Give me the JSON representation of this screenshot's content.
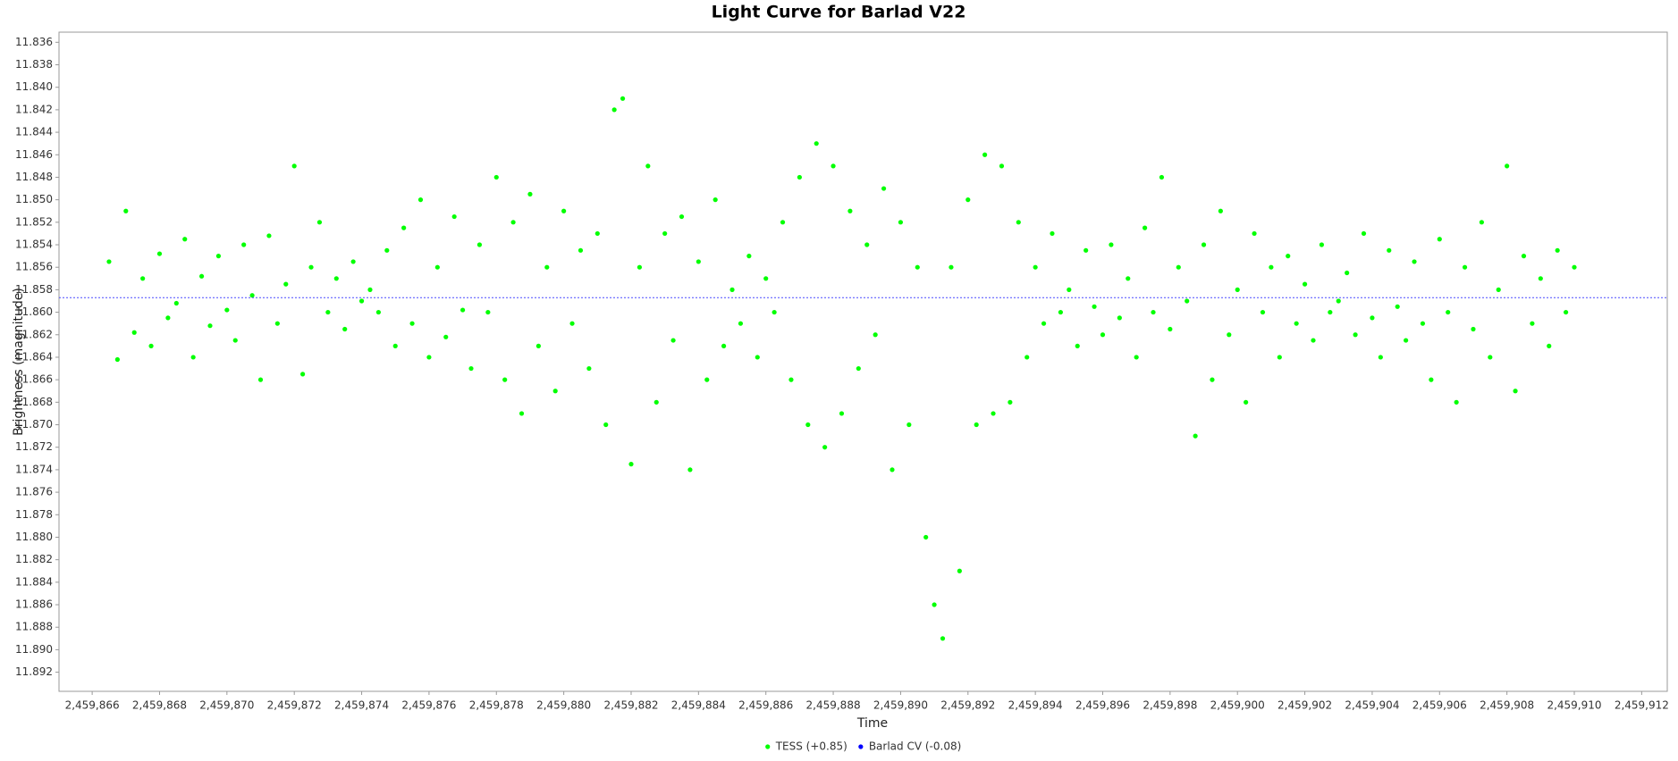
{
  "chart_data": {
    "type": "scatter",
    "title": "Light Curve for Barlad V22",
    "x_label": "Time",
    "y_label": "Brightness (magnitude)",
    "y_inverted": true,
    "grid": false,
    "xlim": [
      2459865.015,
      2459912.76
    ],
    "ylim": [
      11.8351,
      11.8937
    ],
    "xticks": [
      {
        "value": 2459866,
        "label": "2,459,866"
      },
      {
        "value": 2459868,
        "label": "2,459,868"
      },
      {
        "value": 2459870,
        "label": "2,459,870"
      },
      {
        "value": 2459872,
        "label": "2,459,872"
      },
      {
        "value": 2459874,
        "label": "2,459,874"
      },
      {
        "value": 2459876,
        "label": "2,459,876"
      },
      {
        "value": 2459878,
        "label": "2,459,878"
      },
      {
        "value": 2459880,
        "label": "2,459,880"
      },
      {
        "value": 2459882,
        "label": "2,459,882"
      },
      {
        "value": 2459884,
        "label": "2,459,884"
      },
      {
        "value": 2459886,
        "label": "2,459,886"
      },
      {
        "value": 2459888,
        "label": "2,459,888"
      },
      {
        "value": 2459890,
        "label": "2,459,890"
      },
      {
        "value": 2459892,
        "label": "2,459,892"
      },
      {
        "value": 2459894,
        "label": "2,459,894"
      },
      {
        "value": 2459896,
        "label": "2,459,896"
      },
      {
        "value": 2459898,
        "label": "2,459,898"
      },
      {
        "value": 2459900,
        "label": "2,459,900"
      },
      {
        "value": 2459902,
        "label": "2,459,902"
      },
      {
        "value": 2459904,
        "label": "2,459,904"
      },
      {
        "value": 2459906,
        "label": "2,459,906"
      },
      {
        "value": 2459908,
        "label": "2,459,908"
      },
      {
        "value": 2459910,
        "label": "2,459,910"
      },
      {
        "value": 2459912,
        "label": "2,459,912"
      }
    ],
    "yticks": [
      11.836,
      11.838,
      {
        "value": 11.84,
        "label": "11.840"
      },
      11.842,
      11.844,
      11.846,
      11.848,
      {
        "value": 11.85,
        "label": "11.850"
      },
      11.852,
      11.854,
      11.856,
      11.858,
      {
        "value": 11.86,
        "label": "11.860"
      },
      11.862,
      11.864,
      11.866,
      11.868,
      {
        "value": 11.87,
        "label": "11.870"
      },
      11.872,
      11.874,
      11.876,
      11.878,
      {
        "value": 11.88,
        "label": "11.880"
      },
      11.882,
      11.884,
      11.886,
      11.888,
      {
        "value": 11.89,
        "label": "11.890"
      },
      11.892
    ],
    "reference_line": {
      "value": 11.8587,
      "color": "#4a4aff"
    },
    "series": [
      {
        "name": "TESS (+0.85)",
        "color": "#00ff00",
        "x": [
          2459866.5,
          2459866.75,
          2459867,
          2459867.25,
          2459867.5,
          2459867.75,
          2459868,
          2459868.25,
          2459868.5,
          2459868.75,
          2459869,
          2459869.25,
          2459869.5,
          2459869.75,
          2459870,
          2459870.25,
          2459870.5,
          2459870.75,
          2459871,
          2459871.25,
          2459871.5,
          2459871.75,
          2459872,
          2459872.25,
          2459872.5,
          2459872.75,
          2459873,
          2459873.25,
          2459873.5,
          2459873.75,
          2459874,
          2459874.25,
          2459874.5,
          2459874.75,
          2459875,
          2459875.25,
          2459875.5,
          2459875.75,
          2459876,
          2459876.25,
          2459876.5,
          2459876.75,
          2459877,
          2459877.25,
          2459877.5,
          2459877.75,
          2459878,
          2459878.25,
          2459878.5,
          2459878.75,
          2459879,
          2459879.25,
          2459879.5,
          2459879.75,
          2459880,
          2459880.25,
          2459880.5,
          2459880.75,
          2459881,
          2459881.25,
          2459881.5,
          2459881.75,
          2459882,
          2459882.25,
          2459882.5,
          2459882.75,
          2459883,
          2459883.25,
          2459883.5,
          2459883.75,
          2459884,
          2459884.25,
          2459884.5,
          2459884.75,
          2459885,
          2459885.25,
          2459885.5,
          2459885.75,
          2459886,
          2459886.25,
          2459886.5,
          2459886.75,
          2459887,
          2459887.25,
          2459887.5,
          2459887.75,
          2459888,
          2459888.25,
          2459888.5,
          2459888.75,
          2459889,
          2459889.25,
          2459889.5,
          2459889.75,
          2459890,
          2459890.25,
          2459890.5,
          2459890.75,
          2459891,
          2459891.25,
          2459891.5,
          2459891.75,
          2459892,
          2459892.25,
          2459892.5,
          2459892.75,
          2459893,
          2459893.25,
          2459893.5,
          2459893.75,
          2459894,
          2459894.25,
          2459894.5,
          2459894.75,
          2459895,
          2459895.25,
          2459895.5,
          2459895.75,
          2459896,
          2459896.25,
          2459896.5,
          2459896.75,
          2459897,
          2459897.25,
          2459897.5,
          2459897.75,
          2459898,
          2459898.25,
          2459898.5,
          2459898.75,
          2459899,
          2459899.25,
          2459899.5,
          2459899.75,
          2459900,
          2459900.25,
          2459900.5,
          2459900.75,
          2459901,
          2459901.25,
          2459901.5,
          2459901.75,
          2459902,
          2459902.25,
          2459902.5,
          2459902.75,
          2459903,
          2459903.25,
          2459903.5,
          2459903.75,
          2459904,
          2459904.25,
          2459904.5,
          2459904.75,
          2459905,
          2459905.25,
          2459905.5,
          2459905.75,
          2459906,
          2459906.25,
          2459906.5,
          2459906.75,
          2459907,
          2459907.25,
          2459907.5,
          2459907.75,
          2459908,
          2459908.25,
          2459908.5,
          2459908.75,
          2459909,
          2459909.25,
          2459909.5,
          2459909.75,
          2459910
        ],
        "values": [
          11.8555,
          11.8642,
          11.851,
          11.8618,
          11.857,
          11.863,
          11.8548,
          11.8605,
          11.8592,
          11.8535,
          11.864,
          11.8568,
          11.8612,
          11.855,
          11.8598,
          11.8625,
          11.854,
          11.8585,
          11.866,
          11.8532,
          11.861,
          11.8575,
          11.847,
          11.8655,
          11.856,
          11.852,
          11.86,
          11.857,
          11.8615,
          11.8555,
          11.859,
          11.858,
          11.86,
          11.8545,
          11.863,
          11.8525,
          11.861,
          11.85,
          11.864,
          11.856,
          11.8622,
          11.8515,
          11.8598,
          11.865,
          11.854,
          11.86,
          11.848,
          11.866,
          11.852,
          11.869,
          11.8495,
          11.863,
          11.856,
          11.867,
          11.851,
          11.861,
          11.8545,
          11.865,
          11.853,
          11.87,
          11.842,
          11.841,
          11.8735,
          11.856,
          11.847,
          11.868,
          11.853,
          11.8625,
          11.8515,
          11.874,
          11.8555,
          11.866,
          11.85,
          11.863,
          11.858,
          11.861,
          11.855,
          11.864,
          11.857,
          11.86,
          11.852,
          11.866,
          11.848,
          11.87,
          11.845,
          11.872,
          11.847,
          11.869,
          11.851,
          11.865,
          11.854,
          11.862,
          11.849,
          11.874,
          11.852,
          11.87,
          11.856,
          11.88,
          11.886,
          11.889,
          11.856,
          11.883,
          11.85,
          11.87,
          11.846,
          11.869,
          11.847,
          11.868,
          11.852,
          11.864,
          11.856,
          11.861,
          11.853,
          11.86,
          11.858,
          11.863,
          11.8545,
          11.8595,
          11.862,
          11.854,
          11.8605,
          11.857,
          11.864,
          11.8525,
          11.86,
          11.848,
          11.8615,
          11.856,
          11.859,
          11.871,
          11.854,
          11.866,
          11.851,
          11.862,
          11.858,
          11.868,
          11.853,
          11.86,
          11.856,
          11.864,
          11.855,
          11.861,
          11.8575,
          11.8625,
          11.854,
          11.86,
          11.859,
          11.8565,
          11.862,
          11.853,
          11.8605,
          11.864,
          11.8545,
          11.8595,
          11.8625,
          11.8555,
          11.861,
          11.866,
          11.8535,
          11.86,
          11.868,
          11.856,
          11.8615,
          11.852,
          11.864,
          11.858,
          11.847,
          11.867,
          11.855,
          11.861,
          11.857,
          11.863,
          11.8545,
          11.86,
          11.856
        ]
      },
      {
        "name": "Barlad CV (-0.08)",
        "color": "#0000ff",
        "x": [],
        "values": []
      }
    ]
  }
}
